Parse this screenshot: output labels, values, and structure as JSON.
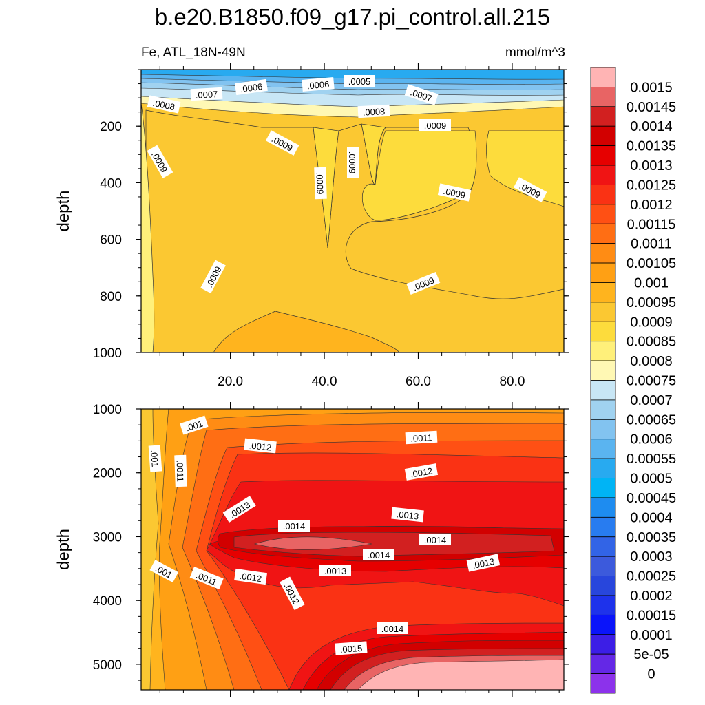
{
  "title": "b.e20.B1850.f09_g17.pi_control.all.215",
  "subtitle_left": "Fe, ATL_18N-49N",
  "subtitle_right": "mmol/m^3",
  "colorbar": {
    "labels": [
      "0.0015",
      "0.00145",
      "0.0014",
      "0.00135",
      "0.0013",
      "0.00125",
      "0.0012",
      "0.00115",
      "0.0011",
      "0.00105",
      "0.001",
      "0.00095",
      "0.0009",
      "0.00085",
      "0.0008",
      "0.00075",
      "0.0007",
      "0.00065",
      "0.0006",
      "0.00055",
      "0.0005",
      "0.00045",
      "0.0004",
      "0.00035",
      "0.0003",
      "0.00025",
      "0.0002",
      "0.00015",
      "0.0001",
      "5e-05",
      "0"
    ],
    "colors": [
      "#ffb4b4",
      "#e86464",
      "#d22020",
      "#d20000",
      "#e60000",
      "#f01414",
      "#fa3214",
      "#ff5014",
      "#ff6e14",
      "#ff8c14",
      "#ffa014",
      "#ffb41e",
      "#fbc832",
      "#fddc3c",
      "#fff07a",
      "#fff8b4",
      "#c8e6f5",
      "#a0d2f0",
      "#82c3f0",
      "#5ab4f0",
      "#28aaf0",
      "#00b4f5",
      "#1e8cf0",
      "#287cf0",
      "#3264e6",
      "#3c5adc",
      "#2846dc",
      "#1e32eb",
      "#0a14fa",
      "#3c1ee6",
      "#6428e6",
      "#8c32eb"
    ]
  },
  "chart_data": [
    {
      "type": "heatmap",
      "panel": "top",
      "ylabel": "depth",
      "xlim": [
        1,
        91
      ],
      "ylim": [
        1000,
        0
      ],
      "xticks": [
        "20.0",
        "40.0",
        "60.0",
        "80.0"
      ],
      "xtick_values": [
        20,
        40,
        60,
        80
      ],
      "yticks": [
        "200",
        "400",
        "600",
        "800",
        "1000"
      ],
      "ytick_values": [
        200,
        400,
        600,
        800,
        1000
      ],
      "contour_labels": [
        ".0008",
        ".0007",
        ".0006",
        ".0006",
        ".0005",
        ".0007",
        ".0008",
        ".0009",
        ".0009",
        ".0009",
        ".0009",
        ".0009",
        ".0009",
        ".0009",
        ".0009",
        ".0009"
      ]
    },
    {
      "type": "heatmap",
      "panel": "bottom",
      "ylabel": "depth",
      "xlim": [
        1,
        91
      ],
      "ylim": [
        5400,
        1000
      ],
      "yticks": [
        "1000",
        "2000",
        "3000",
        "4000",
        "5000"
      ],
      "ytick_values": [
        1000,
        2000,
        3000,
        4000,
        5000
      ],
      "contour_labels": [
        ".001",
        ".001",
        ".0011",
        ".0012",
        ".0011",
        ".0012",
        ".0013",
        ".0013",
        ".0014",
        ".0014",
        ".0014",
        ".001",
        ".0011",
        ".0012",
        ".0012",
        ".0013",
        ".0013",
        ".0014",
        ".0015"
      ]
    }
  ]
}
